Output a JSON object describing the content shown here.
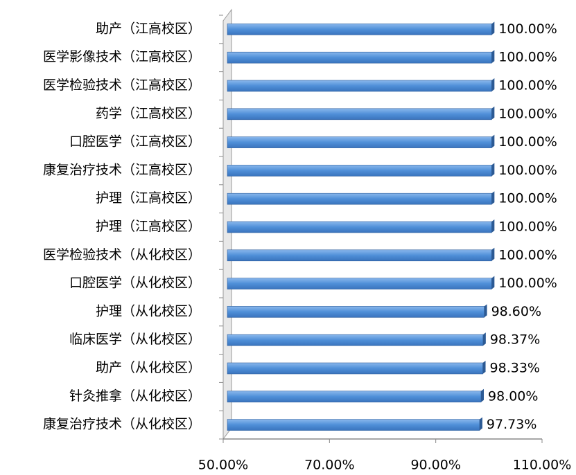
{
  "chart_data": {
    "type": "bar",
    "orientation": "horizontal",
    "categories": [
      "助产（江高校区）",
      "医学影像技术（江高校区）",
      "医学检验技术（江高校区）",
      "药学（江高校区）",
      "口腔医学（江高校区）",
      "康复治疗技术（江高校区）",
      "护理（江高校区）",
      "护理（江高校区）",
      "医学检验技术（从化校区）",
      "口腔医学（从化校区）",
      "护理（从化校区）",
      "临床医学（从化校区）",
      "助产（从化校区）",
      "针灸推拿（从化校区）",
      "康复治疗技术（从化校区）"
    ],
    "values": [
      100,
      100,
      100,
      100,
      100,
      100,
      100,
      100,
      100,
      100,
      98.6,
      98.37,
      98.33,
      98.0,
      97.73
    ],
    "value_labels": [
      "100.00%",
      "100.00%",
      "100.00%",
      "100.00%",
      "100.00%",
      "100.00%",
      "100.00%",
      "100.00%",
      "100.00%",
      "100.00%",
      "98.60%",
      "98.37%",
      "98.33%",
      "98.00%",
      "97.73%"
    ],
    "color": "#4f8fd8",
    "xlim": [
      50,
      110
    ],
    "xticks": [
      {
        "value": 50,
        "label": "50.00%"
      },
      {
        "value": 70,
        "label": "70.00%"
      },
      {
        "value": 90,
        "label": "90.00%"
      },
      {
        "value": 110,
        "label": "110.00%"
      }
    ]
  }
}
